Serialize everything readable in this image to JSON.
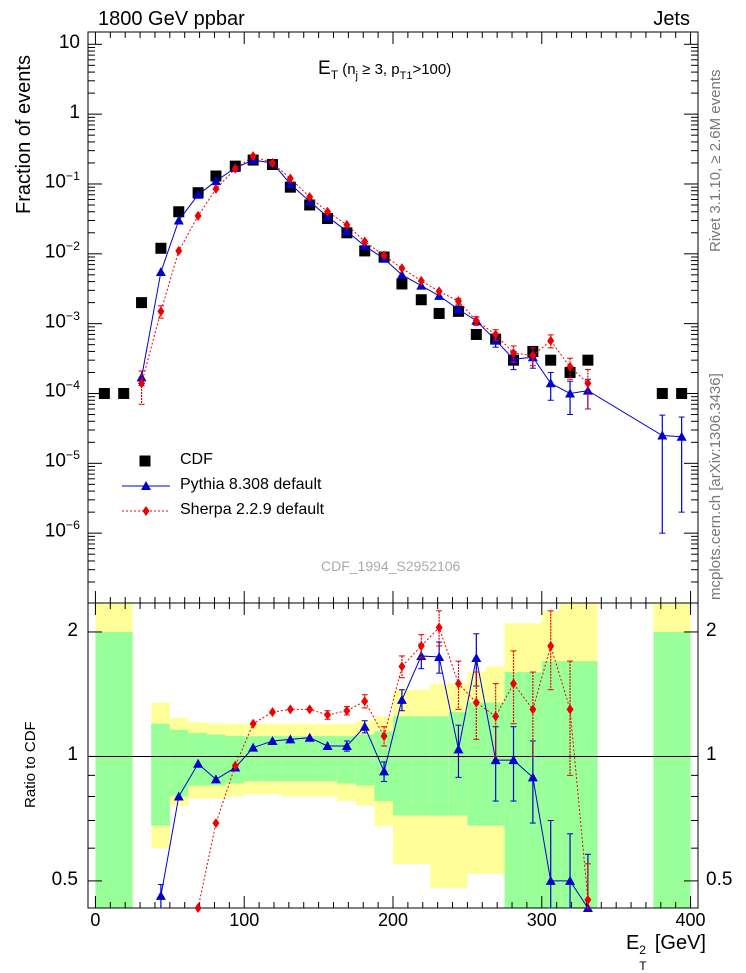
{
  "header": {
    "left": "1800 GeV ppbar",
    "right": "Jets"
  },
  "side": {
    "rivet": "Rivet 3.1.10, ≥ 2.6M events",
    "mcplots": "mcplots.cern.ch [arXiv:1306.3436]"
  },
  "watermark": "CDF_1994_S2952106",
  "colors": {
    "data": "#000000",
    "pythia": "#0000cc",
    "sherpa": "#ee0000",
    "band_inner": "#99ff99",
    "band_outer": "#ffff99"
  },
  "chart_data": [
    {
      "type": "scatter",
      "panel": "main",
      "title": "E_T (n_j ≥ 3, p_T1>100)",
      "title_parts": {
        "base": "E",
        "base_sub": "T",
        "open": " (n",
        "n_sub": "j",
        "mid": " ≥ 3, p",
        "p_sub": "T1",
        "close": ">100)"
      },
      "ylabel": "Fraction of events",
      "yscale": "log",
      "ylim": [
        1e-07,
        15
      ],
      "xlim": [
        -5,
        405
      ],
      "y_ticks": [
        {
          "value": 10,
          "label": "10"
        },
        {
          "value": 1,
          "label": "1"
        },
        {
          "value": 0.1,
          "label": "10",
          "exp": "−1"
        },
        {
          "value": 0.01,
          "label": "10",
          "exp": "−2"
        },
        {
          "value": 0.001,
          "label": "10",
          "exp": "−3"
        },
        {
          "value": 0.0001,
          "label": "10",
          "exp": "−4"
        },
        {
          "value": 1e-05,
          "label": "10",
          "exp": "−5"
        },
        {
          "value": 1e-06,
          "label": "10",
          "exp": "−6"
        }
      ],
      "legend": [
        "CDF",
        "Pythia 8.308 default",
        "Sherpa 2.2.9 default"
      ],
      "legend_position": "lower-left",
      "series": [
        {
          "name": "CDF",
          "marker": "square",
          "x": [
            6,
            19,
            31,
            44,
            56,
            69,
            81,
            94,
            106,
            119,
            131,
            144,
            156,
            169,
            181,
            194,
            206,
            219,
            231,
            244,
            256,
            269,
            281,
            294,
            306,
            319,
            331,
            381,
            394
          ],
          "y": [
            0.0001,
            0.0001,
            0.002,
            0.012,
            0.04,
            0.075,
            0.13,
            0.18,
            0.22,
            0.19,
            0.09,
            0.05,
            0.032,
            0.02,
            0.011,
            0.009,
            0.0037,
            0.0022,
            0.0014,
            0.0015,
            0.0007,
            0.0006,
            0.0003,
            0.0004,
            0.0003,
            0.0002,
            0.0003,
            0.0001,
            0.0001
          ]
        },
        {
          "name": "Pythia 8.308 default",
          "marker": "triangle",
          "x": [
            31,
            44,
            56,
            69,
            81,
            94,
            106,
            119,
            131,
            144,
            156,
            169,
            181,
            194,
            206,
            219,
            231,
            244,
            256,
            269,
            281,
            294,
            306,
            319,
            331,
            381,
            394
          ],
          "y": [
            0.00017,
            0.0055,
            0.03,
            0.07,
            0.11,
            0.17,
            0.22,
            0.2,
            0.1,
            0.056,
            0.034,
            0.021,
            0.013,
            0.0085,
            0.005,
            0.0035,
            0.0025,
            0.0016,
            0.0011,
            0.00058,
            0.00031,
            0.00033,
            0.00014,
            0.0001,
            0.00011,
            2.5e-05,
            2.4e-05
          ],
          "err": [
            4e-05,
            0,
            0,
            0,
            0,
            0,
            0,
            0,
            0,
            0,
            0,
            0,
            0,
            0,
            0,
            0,
            0,
            0.0002,
            0.00015,
            0.00012,
            9e-05,
            0.0001,
            6e-05,
            5e-05,
            5e-05,
            2.4e-05,
            2.2e-05
          ]
        },
        {
          "name": "Sherpa 2.2.9 default",
          "marker": "diamond",
          "x": [
            31,
            44,
            56,
            69,
            81,
            94,
            106,
            119,
            131,
            144,
            156,
            169,
            181,
            194,
            206,
            219,
            231,
            244,
            256,
            269,
            281,
            294,
            306,
            319,
            331
          ],
          "y": [
            0.00014,
            0.0015,
            0.011,
            0.035,
            0.085,
            0.165,
            0.25,
            0.2,
            0.12,
            0.065,
            0.04,
            0.026,
            0.015,
            0.0095,
            0.0062,
            0.0041,
            0.0029,
            0.0021,
            0.0011,
            0.0007,
            0.00038,
            0.00035,
            0.00057,
            0.00024,
            0.00014
          ],
          "err": [
            7e-05,
            0.0003,
            0,
            0,
            0,
            0,
            0,
            0,
            0,
            0,
            0,
            0,
            0,
            0,
            0,
            0,
            0,
            0.0002,
            0.00015,
            0.00012,
            0.0001,
            0.0001,
            0.00012,
            8e-05,
            8e-05
          ]
        }
      ]
    },
    {
      "type": "line",
      "panel": "ratio",
      "ylabel": "Ratio to CDF",
      "xlabel": "E_T^2 [GeV]",
      "xlabel_parts": {
        "base": "E",
        "sub": "T",
        "sup": "2",
        "unit": " [GeV]"
      },
      "yscale": "log",
      "ylim": [
        0.43,
        2.35
      ],
      "xlim": [
        -5,
        405
      ],
      "x_ticks": [
        0,
        100,
        200,
        300,
        400
      ],
      "y_ticks": [
        0.5,
        1,
        2
      ],
      "reference_line": 1,
      "bands": {
        "edges": [
          0,
          12.5,
          25,
          37.5,
          50,
          62.5,
          75,
          87.5,
          100,
          112.5,
          125,
          137.5,
          150,
          162.5,
          175,
          187.5,
          200,
          212.5,
          225,
          237.5,
          250,
          262.5,
          275,
          287.5,
          300,
          312.5,
          325,
          337.5,
          375,
          387.5,
          400
        ],
        "inner_lo": [
          0.43,
          0.43,
          null,
          0.68,
          0.8,
          0.85,
          0.85,
          0.86,
          0.87,
          0.87,
          0.87,
          0.87,
          0.87,
          0.86,
          0.85,
          0.78,
          0.72,
          0.72,
          0.72,
          0.72,
          0.68,
          0.68,
          0.43,
          0.43,
          0.43,
          0.43,
          0.43,
          null,
          0.43,
          0.43
        ],
        "inner_hi": [
          2.0,
          2.0,
          null,
          1.2,
          1.16,
          1.14,
          1.13,
          1.12,
          1.12,
          1.12,
          1.12,
          1.12,
          1.12,
          1.12,
          1.13,
          1.15,
          1.25,
          1.25,
          1.25,
          1.28,
          1.35,
          1.35,
          1.6,
          1.6,
          1.7,
          1.7,
          1.7,
          null,
          2.0,
          2.0
        ],
        "outer_lo": [
          0.43,
          0.43,
          null,
          0.6,
          0.76,
          0.79,
          0.79,
          0.8,
          0.81,
          0.81,
          0.8,
          0.8,
          0.8,
          0.78,
          0.76,
          0.68,
          0.55,
          0.55,
          0.48,
          0.48,
          0.52,
          0.52,
          0.43,
          0.43,
          0.43,
          0.43,
          0.43,
          null,
          0.43,
          0.43
        ],
        "outer_hi": [
          2.35,
          2.35,
          null,
          1.35,
          1.24,
          1.21,
          1.2,
          1.2,
          1.2,
          1.2,
          1.2,
          1.2,
          1.2,
          1.2,
          1.22,
          1.25,
          1.45,
          1.45,
          1.5,
          1.5,
          1.6,
          1.65,
          2.1,
          2.1,
          2.25,
          2.35,
          2.35,
          null,
          2.35,
          2.35
        ]
      },
      "series": [
        {
          "name": "Pythia 8.308 default",
          "x": [
            44,
            56,
            69,
            81,
            94,
            106,
            119,
            131,
            144,
            156,
            169,
            181,
            194,
            206,
            219,
            231,
            244,
            256,
            269,
            281,
            294,
            306,
            319,
            331
          ],
          "y": [
            0.46,
            0.8,
            0.96,
            0.88,
            0.94,
            1.05,
            1.09,
            1.1,
            1.11,
            1.06,
            1.06,
            1.18,
            0.92,
            1.37,
            1.75,
            1.74,
            1.04,
            1.73,
            0.98,
            0.98,
            0.89,
            0.5,
            0.5,
            0.43
          ],
          "err": [
            0.03,
            0.02,
            0.02,
            0.02,
            0.02,
            0.02,
            0.02,
            0.02,
            0.02,
            0.02,
            0.03,
            0.04,
            0.05,
            0.08,
            0.12,
            0.15,
            0.15,
            0.25,
            0.2,
            0.2,
            0.2,
            0.2,
            0.15,
            0.15
          ]
        },
        {
          "name": "Sherpa 2.2.9 default",
          "x": [
            69,
            81,
            94,
            106,
            119,
            131,
            144,
            156,
            169,
            181,
            194,
            206,
            219,
            231,
            244,
            256,
            269,
            281,
            294,
            306,
            319,
            331
          ],
          "y": [
            0.43,
            0.69,
            0.95,
            1.2,
            1.28,
            1.3,
            1.3,
            1.26,
            1.29,
            1.36,
            1.12,
            1.65,
            1.85,
            2.05,
            1.5,
            1.35,
            1.25,
            1.5,
            1.3,
            1.85,
            1.3,
            0.45
          ],
          "err": [
            0.02,
            0.02,
            0.02,
            0.02,
            0.02,
            0.02,
            0.02,
            0.03,
            0.03,
            0.05,
            0.06,
            0.1,
            0.12,
            0.2,
            0.2,
            0.25,
            0.25,
            0.3,
            0.3,
            0.4,
            0.4,
            0.1
          ]
        }
      ]
    }
  ]
}
